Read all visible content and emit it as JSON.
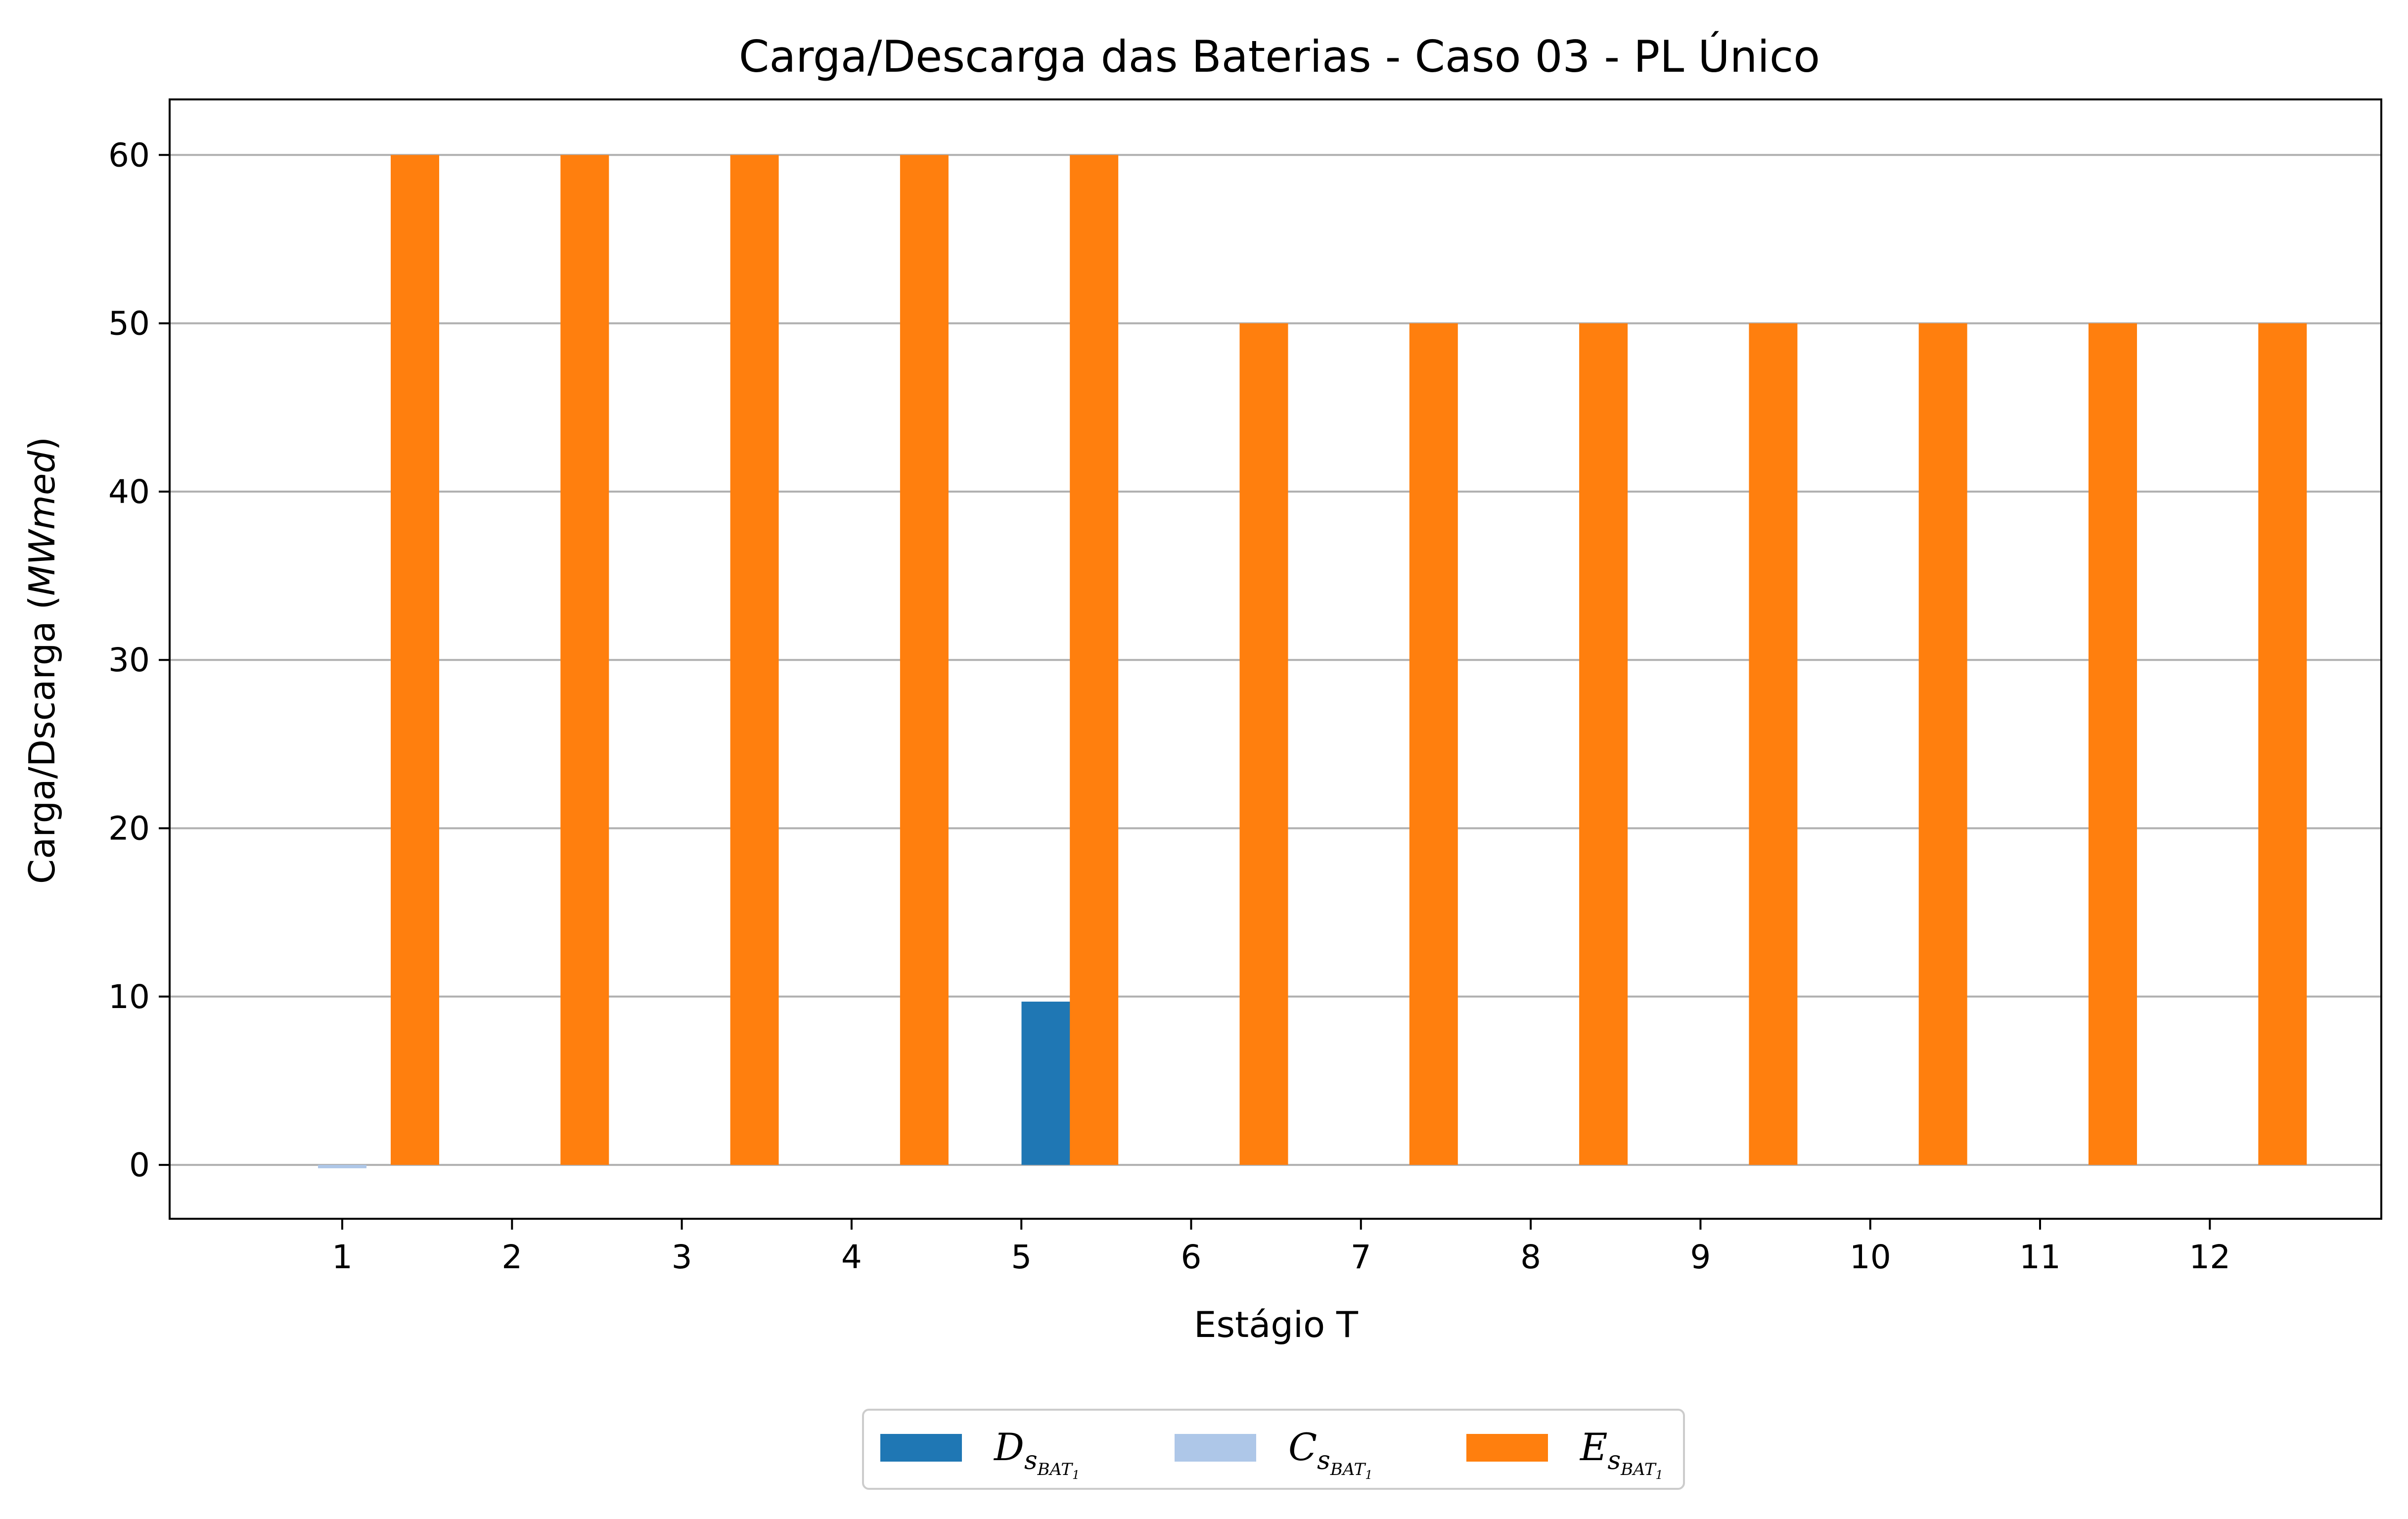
{
  "chart_data": {
    "type": "bar",
    "title": "Carga/Descarga das Baterias - Caso 03 - PL Único",
    "xlabel": "Estágio T",
    "ylabel_prefix": "Carga/Dscarga (",
    "ylabel_unit": "MWmed",
    "ylabel_suffix": ")",
    "categories": [
      "1",
      "2",
      "3",
      "4",
      "5",
      "6",
      "7",
      "8",
      "9",
      "10",
      "11",
      "12"
    ],
    "ylim": [
      -3.2,
      63.3
    ],
    "yticks": [
      0,
      10,
      20,
      30,
      40,
      50,
      60
    ],
    "grid": "horizontal",
    "legend_position": "bottom-center",
    "series": [
      {
        "name": "D",
        "name_sub1": "s",
        "name_sub2": "BAT",
        "name_sub3": "1",
        "color": "#1f77b4",
        "values": [
          0,
          0,
          0,
          0,
          0,
          9.7,
          0,
          0,
          0,
          0,
          0,
          0
        ]
      },
      {
        "name": "C",
        "name_sub1": "s",
        "name_sub2": "BAT",
        "name_sub3": "1",
        "color": "#aec7e8",
        "values": [
          -0.2,
          0,
          0,
          0,
          0,
          0,
          0,
          0,
          0,
          0,
          0,
          0
        ]
      },
      {
        "name": "E",
        "name_sub1": "s",
        "name_sub2": "BAT",
        "name_sub3": "1",
        "color": "#ff7f0e",
        "values": [
          60,
          60,
          60,
          60,
          60,
          50,
          50,
          50,
          50,
          50,
          50,
          50
        ]
      }
    ]
  }
}
